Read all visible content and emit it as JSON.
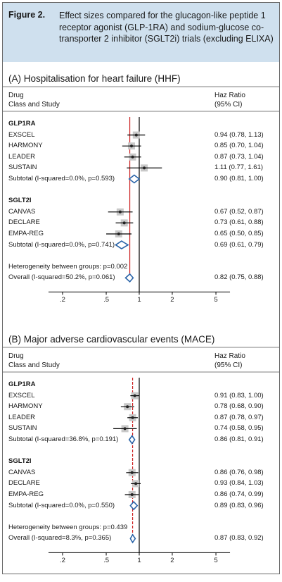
{
  "figure": {
    "label": "Figure 2.",
    "caption": "Effect sizes compared for the glucagon-like peptide 1 receptor agonist (GLP-1RA) and sodium-glucose co-transporter 2 inhibitor (SGLT2i) trials (excluding ELIXA)"
  },
  "colors": {
    "caption_bg": "#cfe0ee",
    "null_line": "#000000",
    "pooled_line": "#cc2020",
    "diamond": "#2a64a8",
    "weight_box": "#c9c9c9"
  },
  "chart_data": [
    {
      "type": "forest",
      "title": "(A) Hospitalisation for heart failure (HHF)",
      "col_left": [
        "Drug",
        "Class and Study"
      ],
      "col_right": [
        "Haz Ratio",
        "(95% CI)"
      ],
      "x_scale": "log",
      "xticks": [
        ".2",
        ".5",
        "1",
        "2",
        "5"
      ],
      "pooled_estimate": 0.82,
      "rows": [
        {
          "label": "GLP1RA",
          "kind": "group"
        },
        {
          "label": "EXSCEL",
          "kind": "study",
          "hr": 0.94,
          "lo": 0.78,
          "hi": 1.13,
          "ci_text": "0.94 (0.78, 1.13)"
        },
        {
          "label": "HARMONY",
          "kind": "study",
          "hr": 0.85,
          "lo": 0.7,
          "hi": 1.04,
          "ci_text": "0.85 (0.70, 1.04)"
        },
        {
          "label": "LEADER",
          "kind": "study",
          "hr": 0.87,
          "lo": 0.73,
          "hi": 1.04,
          "ci_text": "0.87 (0.73, 1.04)"
        },
        {
          "label": "SUSTAIN",
          "kind": "study",
          "hr": 1.11,
          "lo": 0.77,
          "hi": 1.61,
          "ci_text": "1.11 (0.77, 1.61)"
        },
        {
          "label": "Subtotal (I-squared=0.0%, p=0.593)",
          "kind": "subtotal",
          "hr": 0.9,
          "lo": 0.81,
          "hi": 1.0,
          "ci_text": "0.90 (0.81, 1.00)"
        },
        {
          "label": "",
          "kind": "blank"
        },
        {
          "label": "SGLT2I",
          "kind": "group"
        },
        {
          "label": "CANVAS",
          "kind": "study",
          "hr": 0.67,
          "lo": 0.52,
          "hi": 0.87,
          "ci_text": "0.67 (0.52, 0.87)"
        },
        {
          "label": "DECLARE",
          "kind": "study",
          "hr": 0.73,
          "lo": 0.61,
          "hi": 0.88,
          "ci_text": "0.73 (0.61, 0.88)"
        },
        {
          "label": "EMPA-REG",
          "kind": "study",
          "hr": 0.65,
          "lo": 0.5,
          "hi": 0.85,
          "ci_text": "0.65 (0.50, 0.85)"
        },
        {
          "label": "Subtotal (I-squared=0.0%, p=0.741)",
          "kind": "subtotal",
          "hr": 0.69,
          "lo": 0.61,
          "hi": 0.79,
          "ci_text": "0.69 (0.61, 0.79)"
        },
        {
          "label": "",
          "kind": "blank"
        },
        {
          "label": "Heterogeneity between groups: p=0.002",
          "kind": "note"
        },
        {
          "label": "Overall (I-squared=50.2%, p=0.061)",
          "kind": "overall",
          "hr": 0.82,
          "lo": 0.75,
          "hi": 0.88,
          "ci_text": "0.82 (0.75, 0.88)"
        }
      ]
    },
    {
      "type": "forest",
      "title": "(B) Major adverse cardiovascular events (MACE)",
      "col_left": [
        "Drug",
        "Class and Study"
      ],
      "col_right": [
        "Haz Ratio",
        "(95% CI)"
      ],
      "x_scale": "log",
      "xticks": [
        ".2",
        ".5",
        "1",
        "2",
        "5"
      ],
      "pooled_estimate": 0.87,
      "rows": [
        {
          "label": "GLP1RA",
          "kind": "group"
        },
        {
          "label": "EXSCEL",
          "kind": "study",
          "hr": 0.91,
          "lo": 0.83,
          "hi": 1.0,
          "ci_text": "0.91 (0.83, 1.00)"
        },
        {
          "label": "HARMONY",
          "kind": "study",
          "hr": 0.78,
          "lo": 0.68,
          "hi": 0.9,
          "ci_text": "0.78 (0.68, 0.90)"
        },
        {
          "label": "LEADER",
          "kind": "study",
          "hr": 0.87,
          "lo": 0.78,
          "hi": 0.97,
          "ci_text": "0.87 (0.78, 0.97)"
        },
        {
          "label": "SUSTAIN",
          "kind": "study",
          "hr": 0.74,
          "lo": 0.58,
          "hi": 0.95,
          "ci_text": "0.74 (0.58, 0.95)"
        },
        {
          "label": "Subtotal (I-squared=36.8%, p=0.191)",
          "kind": "subtotal",
          "hr": 0.86,
          "lo": 0.81,
          "hi": 0.91,
          "ci_text": "0.86 (0.81, 0.91)"
        },
        {
          "label": "",
          "kind": "blank"
        },
        {
          "label": "SGLT2I",
          "kind": "group"
        },
        {
          "label": "CANVAS",
          "kind": "study",
          "hr": 0.86,
          "lo": 0.76,
          "hi": 0.98,
          "ci_text": "0.86 (0.76, 0.98)"
        },
        {
          "label": "DECLARE",
          "kind": "study",
          "hr": 0.93,
          "lo": 0.84,
          "hi": 1.03,
          "ci_text": "0.93 (0.84, 1.03)"
        },
        {
          "label": "EMPA-REG",
          "kind": "study",
          "hr": 0.86,
          "lo": 0.74,
          "hi": 0.99,
          "ci_text": "0.86 (0.74, 0.99)"
        },
        {
          "label": "Subtotal (I-squared=0.0%, p=0.550)",
          "kind": "subtotal",
          "hr": 0.89,
          "lo": 0.83,
          "hi": 0.96,
          "ci_text": "0.89 (0.83, 0.96)"
        },
        {
          "label": "",
          "kind": "blank"
        },
        {
          "label": "Heterogeneity between groups: p=0.439",
          "kind": "note"
        },
        {
          "label": "Overall (I-squared=8.3%, p=0.365)",
          "kind": "overall",
          "hr": 0.87,
          "lo": 0.83,
          "hi": 0.92,
          "ci_text": "0.87 (0.83, 0.92)"
        }
      ]
    }
  ]
}
